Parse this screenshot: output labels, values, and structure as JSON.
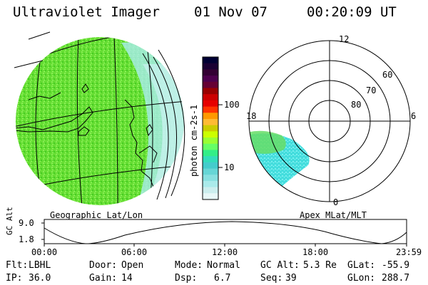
{
  "header": {
    "instrument": "Ultraviolet Imager",
    "date": "01 Nov 07",
    "time": "00:20:09 UT"
  },
  "colorbar": {
    "unit_label": "photon cm-2s-1",
    "ticks": [
      "100",
      "10"
    ],
    "colors": [
      "#000033",
      "#1a0033",
      "#330033",
      "#4d004d",
      "#660033",
      "#990000",
      "#cc0000",
      "#e60000",
      "#ff3300",
      "#ff9900",
      "#ffbb33",
      "#cccc00",
      "#ccff00",
      "#99ff33",
      "#66ff66",
      "#33ee88",
      "#33ddbb",
      "#44cccc",
      "#66d6d6",
      "#88e0e0",
      "#aaeaea",
      "#cceeee",
      "#e8f8f8"
    ]
  },
  "globe": {
    "label": "Geographic Lat/Lon",
    "fill_color": "#66dd33"
  },
  "polar": {
    "label": "Apex MLat/MLT",
    "mlt_labels": [
      "12",
      "18",
      "6",
      "0"
    ],
    "lat_labels": [
      "60",
      "70",
      "80"
    ],
    "aurora_color": "#44dddd"
  },
  "altitude_plot": {
    "axis_label": "GC Alt",
    "y_ticks": [
      "9.0",
      "1.8"
    ],
    "x_ticks": [
      "00:00",
      "06:00",
      "12:00",
      "18:00",
      "23:59"
    ]
  },
  "info": {
    "flt_label": "Flt:",
    "flt_value": "LBHL",
    "ip_label": "IP:",
    "ip_value": "36.0",
    "door_label": "Door:",
    "door_value": "Open",
    "gain_label": "Gain:",
    "gain_value": "14",
    "mode_label": "Mode:",
    "mode_value": "Normal",
    "dsp_label": "Dsp:",
    "dsp_value": "6.7",
    "gcalt_label": "GC Alt:",
    "gcalt_value": "5.3 Re",
    "seq_label": "Seq:",
    "seq_value": "39",
    "glat_label": "GLat:",
    "glat_value": "-55.9",
    "glon_label": "GLon:",
    "glon_value": "288.7"
  }
}
